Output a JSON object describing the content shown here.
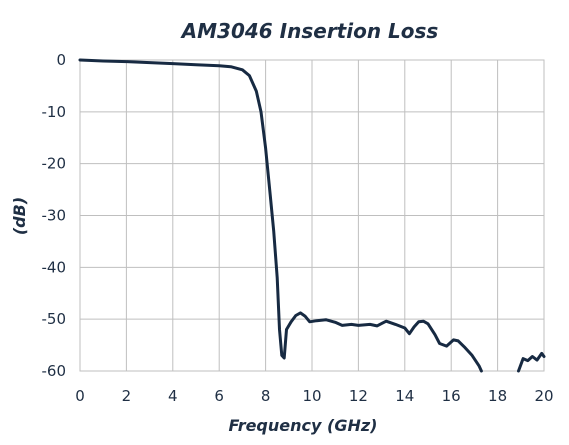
{
  "chart_data": {
    "type": "line",
    "title": "AM3046 Insertion Loss",
    "xlabel": "Frequency (GHz)",
    "ylabel": "(dB)",
    "xlim": [
      0,
      20
    ],
    "ylim": [
      -60,
      0
    ],
    "x_ticks": [
      "0",
      "2",
      "4",
      "6",
      "8",
      "10",
      "12",
      "14",
      "16",
      "18",
      "20"
    ],
    "y_ticks": [
      "0",
      "-10",
      "-20",
      "-30",
      "-40",
      "-50",
      "-60"
    ],
    "grid": true,
    "legend": "none",
    "colors": {
      "line": "#172a42",
      "grid": "#bfbfbf",
      "text": "#1f2f44"
    },
    "series": [
      {
        "segments": [
          [
            [
              0,
              0
            ],
            [
              1,
              -0.2
            ],
            [
              2,
              -0.3
            ],
            [
              3,
              -0.5
            ],
            [
              4,
              -0.7
            ],
            [
              5,
              -0.9
            ],
            [
              6,
              -1.1
            ],
            [
              6.5,
              -1.3
            ],
            [
              7,
              -1.9
            ],
            [
              7.3,
              -3
            ],
            [
              7.6,
              -6
            ],
            [
              7.8,
              -10
            ],
            [
              8.0,
              -17
            ],
            [
              8.2,
              -26
            ],
            [
              8.35,
              -33
            ],
            [
              8.5,
              -42
            ],
            [
              8.6,
              -52
            ],
            [
              8.7,
              -57
            ],
            [
              8.8,
              -57.5
            ],
            [
              8.9,
              -52
            ],
            [
              9.1,
              -50.5
            ],
            [
              9.3,
              -49.3
            ],
            [
              9.5,
              -48.8
            ],
            [
              9.7,
              -49.4
            ],
            [
              9.9,
              -50.5
            ],
            [
              10.2,
              -50.3
            ],
            [
              10.6,
              -50.1
            ],
            [
              11.0,
              -50.6
            ],
            [
              11.3,
              -51.2
            ],
            [
              11.7,
              -51.0
            ],
            [
              12.0,
              -51.2
            ],
            [
              12.5,
              -51.0
            ],
            [
              12.8,
              -51.3
            ],
            [
              13.2,
              -50.4
            ],
            [
              13.6,
              -51.0
            ],
            [
              14.0,
              -51.7
            ],
            [
              14.2,
              -52.8
            ],
            [
              14.4,
              -51.5
            ],
            [
              14.6,
              -50.5
            ],
            [
              14.8,
              -50.4
            ],
            [
              15.0,
              -50.9
            ],
            [
              15.3,
              -53.0
            ],
            [
              15.5,
              -54.7
            ],
            [
              15.8,
              -55.2
            ],
            [
              16.1,
              -54.0
            ],
            [
              16.3,
              -54.2
            ],
            [
              16.6,
              -55.5
            ],
            [
              16.9,
              -57.0
            ],
            [
              17.2,
              -59.0
            ],
            [
              17.3,
              -60.0
            ]
          ],
          [
            [
              18.9,
              -60.0
            ],
            [
              19.1,
              -57.6
            ],
            [
              19.3,
              -58.0
            ],
            [
              19.5,
              -57.2
            ],
            [
              19.7,
              -57.9
            ],
            [
              19.9,
              -56.6
            ],
            [
              20.0,
              -57.2
            ]
          ]
        ]
      }
    ]
  }
}
